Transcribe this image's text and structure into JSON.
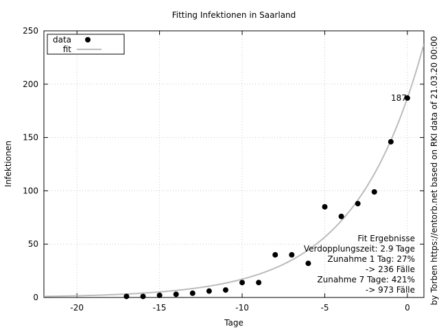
{
  "chart_data": {
    "type": "scatter",
    "title": "Fitting Infektionen in Saarland",
    "xlabel": "Tage",
    "ylabel": "Infektionen",
    "right_label": "by Torben https://entorb.net based on RKI data of 21.03.20 00:00",
    "xlim": [
      -22,
      1
    ],
    "ylim": [
      0,
      250
    ],
    "x_ticks": [
      -20,
      -15,
      -10,
      -5,
      0
    ],
    "y_ticks": [
      0,
      50,
      100,
      150,
      200,
      250
    ],
    "grid": true,
    "legend_position": "top-left",
    "series": [
      {
        "name": "data",
        "style": "points",
        "color": "#000000",
        "x": [
          -17,
          -16,
          -15,
          -14,
          -13,
          -12,
          -11,
          -10,
          -9,
          -8,
          -7,
          -6,
          -5,
          -4,
          -3,
          -2,
          -1,
          0
        ],
        "y": [
          1,
          1,
          2,
          3,
          4,
          6,
          7,
          14,
          14,
          40,
          40,
          32,
          85,
          76,
          88,
          99,
          146,
          187
        ]
      },
      {
        "name": "fit",
        "style": "line",
        "color": "#bbbbbb",
        "function": "exponential",
        "base_value": 187,
        "doubling_time_days": 2.9
      }
    ],
    "annotations": {
      "last_point_label": "187",
      "fit_results": [
        "Fit Ergebnisse",
        "Verdopplungszeit: 2.9 Tage",
        "Zunahme 1 Tag: 27%",
        "-> 236 Fälle",
        "Zunahme 7 Tage: 421%",
        "-> 973 Fälle"
      ]
    }
  }
}
